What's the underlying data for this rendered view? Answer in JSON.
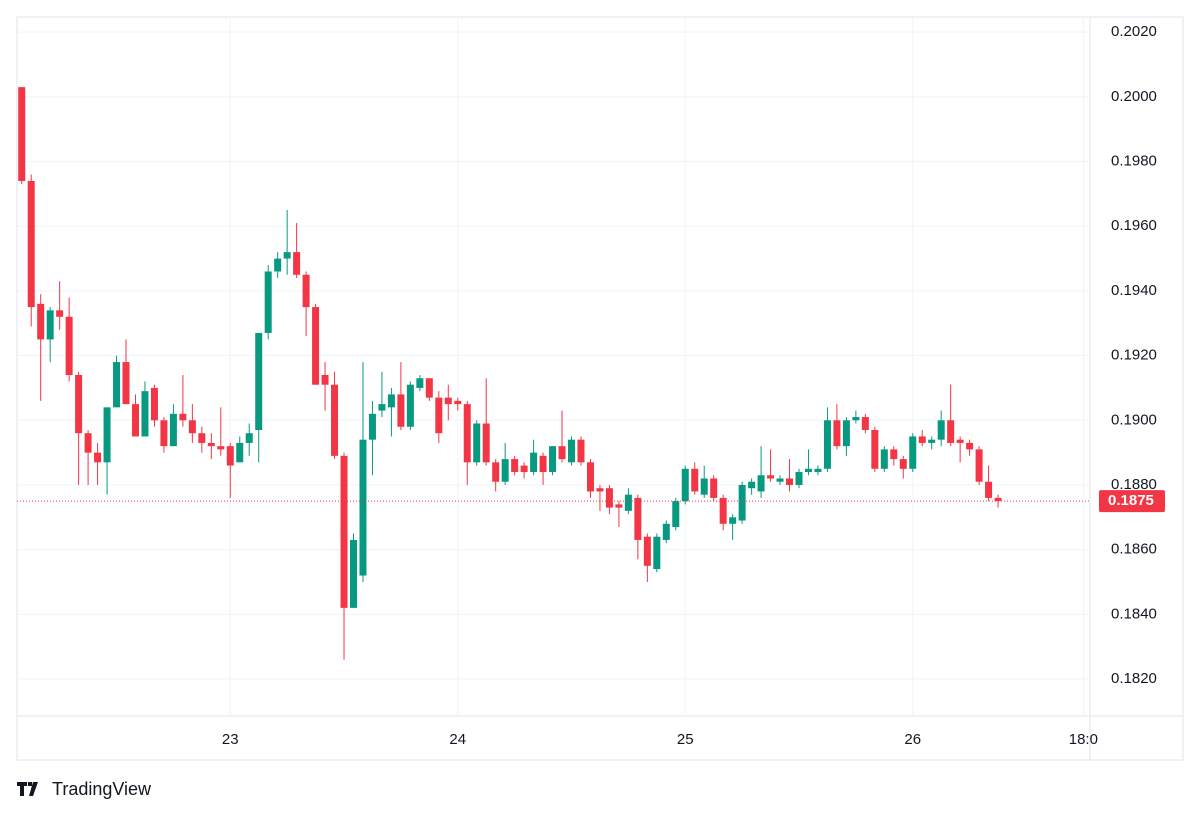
{
  "brand": "TradingView",
  "chart_data": {
    "type": "candlestick",
    "categories": [
      null,
      null,
      null,
      null,
      null,
      null,
      null,
      null,
      null,
      null,
      null,
      null,
      null,
      null,
      null,
      null,
      null,
      null,
      null,
      null,
      null,
      null,
      null,
      null,
      null,
      null,
      null,
      null,
      null,
      null,
      null,
      null,
      null,
      null,
      null,
      null,
      null,
      null,
      null,
      null,
      null,
      null,
      null,
      null,
      null,
      null,
      null,
      null,
      null,
      null,
      null,
      null,
      null,
      null,
      null,
      null,
      null,
      null,
      null,
      null,
      null,
      null,
      null,
      null,
      null,
      null,
      null,
      null,
      null,
      null,
      null,
      null,
      null,
      null,
      null,
      null,
      null,
      null,
      null,
      null,
      null,
      null,
      null,
      null,
      null,
      null,
      null,
      null,
      null,
      null,
      null,
      null,
      null,
      null,
      null,
      null,
      null,
      null,
      null,
      null,
      null,
      null,
      null,
      null
    ],
    "open": [
      0.2003,
      0.1974,
      0.1936,
      0.1925,
      0.1934,
      0.1932,
      0.1914,
      0.1896,
      0.189,
      0.1887,
      0.1904,
      0.1918,
      0.1905,
      0.1895,
      0.191,
      0.19,
      0.1892,
      0.1902,
      0.19,
      0.1896,
      0.1893,
      0.1892,
      0.1892,
      0.1887,
      0.1893,
      0.1897,
      0.1927,
      0.1946,
      0.195,
      0.1952,
      0.1945,
      0.1935,
      0.1914,
      0.1911,
      0.1889,
      0.1842,
      0.1852,
      0.1894,
      0.1903,
      0.1904,
      0.1908,
      0.1898,
      0.191,
      0.1913,
      0.1907,
      0.1907,
      0.1906,
      0.1905,
      0.1887,
      0.1899,
      0.1887,
      0.1881,
      0.1888,
      0.1886,
      0.1884,
      0.1889,
      0.1884,
      0.1892,
      0.1887,
      0.1894,
      0.1887,
      0.1879,
      0.1879,
      0.1874,
      0.1872,
      0.1876,
      0.1864,
      0.1854,
      0.1863,
      0.1867,
      0.1875,
      0.1885,
      0.1877,
      0.1882,
      0.1876,
      0.1868,
      0.1869,
      0.1879,
      0.1878,
      0.1883,
      0.1881,
      0.1882,
      0.188,
      0.1884,
      0.1884,
      0.1885,
      0.19,
      0.1892,
      0.19,
      0.1901,
      0.1897,
      0.1885,
      0.1891,
      0.1888,
      0.1885,
      0.1895,
      0.1893,
      0.1894,
      0.19,
      0.1894,
      0.1893,
      0.1891,
      0.1881,
      0.1876
    ],
    "high": [
      0.2003,
      0.1976,
      0.1939,
      0.1935,
      0.1943,
      0.1938,
      0.1915,
      0.1897,
      0.1893,
      0.1904,
      0.192,
      0.1925,
      0.1908,
      0.1912,
      0.1911,
      0.1901,
      0.1905,
      0.1914,
      0.1905,
      0.1898,
      0.1896,
      0.1904,
      0.1893,
      0.1895,
      0.1899,
      0.1927,
      0.1948,
      0.1952,
      0.1965,
      0.1961,
      0.1946,
      0.1936,
      0.1918,
      0.1915,
      0.189,
      0.1865,
      0.1918,
      0.1906,
      0.1915,
      0.191,
      0.1918,
      0.1912,
      0.1914,
      0.1913,
      0.1909,
      0.1911,
      0.1907,
      0.1906,
      0.19,
      0.1913,
      0.1888,
      0.1893,
      0.1889,
      0.1887,
      0.1894,
      0.189,
      0.1892,
      0.1903,
      0.1895,
      0.1895,
      0.1888,
      0.188,
      0.188,
      0.1875,
      0.1879,
      0.1877,
      0.1865,
      0.1865,
      0.1869,
      0.1876,
      0.1886,
      0.1887,
      0.1886,
      0.1883,
      0.1877,
      0.1871,
      0.1881,
      0.1882,
      0.1892,
      0.1891,
      0.1883,
      0.1888,
      0.1885,
      0.1891,
      0.1886,
      0.1904,
      0.1905,
      0.1901,
      0.1903,
      0.1902,
      0.1898,
      0.1892,
      0.1892,
      0.1889,
      0.1896,
      0.1897,
      0.1895,
      0.1903,
      0.1911,
      0.1895,
      0.1894,
      0.1892,
      0.1886,
      0.1877
    ],
    "low": [
      0.1973,
      0.1929,
      0.1906,
      0.1918,
      0.1928,
      0.1912,
      0.188,
      0.188,
      0.188,
      0.1877,
      0.1904,
      0.1905,
      0.1895,
      0.1895,
      0.1898,
      0.189,
      0.1892,
      0.1898,
      0.1893,
      0.189,
      0.1888,
      0.1889,
      0.1876,
      0.1887,
      0.1889,
      0.1887,
      0.1925,
      0.1944,
      0.1945,
      0.1944,
      0.1926,
      0.1911,
      0.1903,
      0.1888,
      0.1826,
      0.1842,
      0.185,
      0.1883,
      0.1901,
      0.1895,
      0.1897,
      0.1897,
      0.1909,
      0.1906,
      0.1893,
      0.19,
      0.1903,
      0.188,
      0.1886,
      0.1886,
      0.1878,
      0.188,
      0.1883,
      0.1882,
      0.1883,
      0.188,
      0.1883,
      0.1887,
      0.1886,
      0.1886,
      0.1876,
      0.1872,
      0.1871,
      0.1867,
      0.1871,
      0.1857,
      0.185,
      0.1853,
      0.1862,
      0.1866,
      0.1874,
      0.1877,
      0.1876,
      0.1875,
      0.1866,
      0.1863,
      0.1868,
      0.1877,
      0.1876,
      0.1881,
      0.188,
      0.1878,
      0.1879,
      0.1883,
      0.1883,
      0.1884,
      0.1891,
      0.1889,
      0.1899,
      0.1896,
      0.1884,
      0.1884,
      0.1886,
      0.1882,
      0.1884,
      0.1892,
      0.1891,
      0.1892,
      0.1892,
      0.1887,
      0.1889,
      0.188,
      0.1875,
      0.1873
    ],
    "close": [
      0.1974,
      0.1935,
      0.1925,
      0.1934,
      0.1932,
      0.1914,
      0.1896,
      0.189,
      0.1887,
      0.1904,
      0.1918,
      0.1905,
      0.1895,
      0.1909,
      0.19,
      0.1892,
      0.1902,
      0.19,
      0.1896,
      0.1893,
      0.1892,
      0.1891,
      0.1886,
      0.1893,
      0.1896,
      0.1927,
      0.1946,
      0.195,
      0.1952,
      0.1945,
      0.1935,
      0.1911,
      0.1911,
      0.1889,
      0.1842,
      0.1863,
      0.1894,
      0.1902,
      0.1905,
      0.1908,
      0.1898,
      0.1911,
      0.1913,
      0.1907,
      0.1896,
      0.1905,
      0.1905,
      0.1887,
      0.1899,
      0.1887,
      0.1881,
      0.1888,
      0.1884,
      0.1884,
      0.189,
      0.1884,
      0.1892,
      0.1888,
      0.1894,
      0.1887,
      0.1878,
      0.1878,
      0.1873,
      0.1873,
      0.1877,
      0.1863,
      0.1855,
      0.1864,
      0.1868,
      0.1875,
      0.1885,
      0.1878,
      0.1882,
      0.1876,
      0.1868,
      0.187,
      0.188,
      0.1881,
      0.1883,
      0.1882,
      0.1882,
      0.188,
      0.1884,
      0.1885,
      0.1885,
      0.19,
      0.1892,
      0.19,
      0.1901,
      0.1897,
      0.1885,
      0.1891,
      0.1888,
      0.1885,
      0.1895,
      0.1893,
      0.1894,
      0.19,
      0.1893,
      0.1893,
      0.1891,
      0.1881,
      0.1876,
      0.1875
    ],
    "up_color": "#089981",
    "down_color": "#f23645",
    "xlim": [
      -0.5,
      112.7
    ],
    "xticks": [
      {
        "value": 22,
        "label": "23"
      },
      {
        "value": 46,
        "label": "24"
      },
      {
        "value": 70,
        "label": "25"
      },
      {
        "value": 94,
        "label": "26"
      },
      {
        "value": 112,
        "label": "18:0"
      }
    ],
    "ylim": [
      0.1809,
      0.2025
    ],
    "yticks": [
      {
        "value": 0.182,
        "label": "0.1820"
      },
      {
        "value": 0.184,
        "label": "0.1840"
      },
      {
        "value": 0.186,
        "label": "0.1860"
      },
      {
        "value": 0.188,
        "label": "0.1880"
      },
      {
        "value": 0.19,
        "label": "0.1900"
      },
      {
        "value": 0.192,
        "label": "0.1920"
      },
      {
        "value": 0.194,
        "label": "0.1940"
      },
      {
        "value": 0.196,
        "label": "0.1960"
      },
      {
        "value": 0.198,
        "label": "0.1980"
      },
      {
        "value": 0.2,
        "label": "0.2000"
      },
      {
        "value": 0.202,
        "label": "0.2020"
      }
    ],
    "grid": true
  }
}
